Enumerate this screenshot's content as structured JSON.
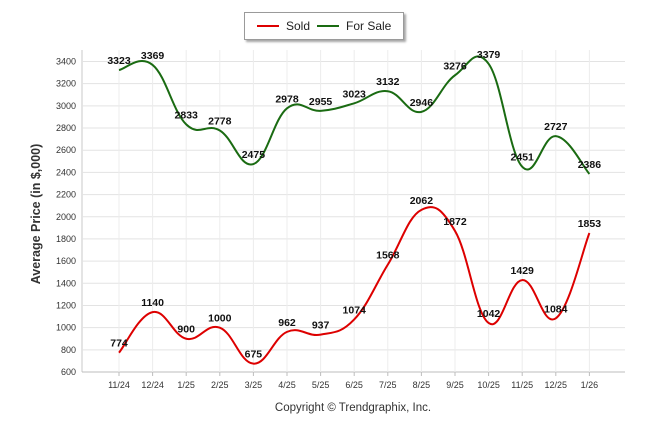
{
  "chart_data": {
    "type": "line",
    "title": "",
    "xlabel": "",
    "ylabel": "Average Price (in $,000)",
    "ylim": [
      600,
      3500
    ],
    "yticks": [
      600,
      800,
      1000,
      1200,
      1400,
      1600,
      1800,
      2000,
      2200,
      2400,
      2600,
      2800,
      3000,
      3200,
      3400
    ],
    "categories": [
      "11/24",
      "12/24",
      "1/25",
      "2/25",
      "3/25",
      "4/25",
      "5/25",
      "6/25",
      "7/25",
      "8/25",
      "9/25",
      "10/25",
      "11/25",
      "12/25",
      "1/26"
    ],
    "legend_position": "top-center",
    "series": [
      {
        "name": "Sold",
        "color": "#dd0000",
        "values": [
          774,
          1140,
          900,
          1000,
          675,
          962,
          937,
          1074,
          1568,
          2062,
          1872,
          1042,
          1429,
          1084,
          1853
        ]
      },
      {
        "name": "For Sale",
        "color": "#1a6b12",
        "values": [
          3323,
          3369,
          2833,
          2778,
          2475,
          2978,
          2955,
          3023,
          3132,
          2946,
          3276,
          3379,
          2451,
          2727,
          2386
        ]
      }
    ]
  },
  "legend": {
    "sold_label": "Sold",
    "forsale_label": "For Sale"
  },
  "footer": {
    "copyright": "Copyright © Trendgraphix, Inc."
  }
}
